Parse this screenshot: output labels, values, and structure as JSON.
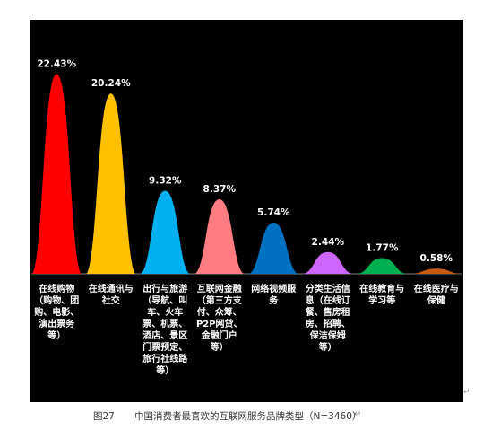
{
  "chart_data": {
    "type": "bar",
    "categories": [
      [
        "在线购物",
        "（购物、团",
        "购、电影、",
        "演出票务",
        "等）"
      ],
      [
        "在线通讯与",
        "社交"
      ],
      [
        "出行与旅游",
        "（导航、叫",
        "车、火车",
        "票、机票、",
        "酒店、景区",
        "门票预定、",
        "旅行社线路",
        "等）"
      ],
      [
        "互联网金融",
        "（第三方支",
        "付、众筹、",
        "P2P网贷、",
        "金融门户",
        "等）"
      ],
      [
        "网络视频服",
        "务"
      ],
      [
        "分类生活信",
        "息（在线订",
        "餐、售房租",
        "房、招聘、",
        "保洁保姆",
        "等）"
      ],
      [
        "在线教育与",
        "学习等"
      ],
      [
        "在线医疗与",
        "保健"
      ]
    ],
    "values": [
      22.43,
      20.24,
      9.32,
      8.37,
      5.74,
      2.44,
      1.77,
      0.58
    ],
    "value_labels": [
      "22.43%",
      "20.24%",
      "9.32%",
      "8.37%",
      "5.74%",
      "2.44%",
      "1.77%",
      "0.58%"
    ],
    "colors": [
      "#ff0000",
      "#ffc000",
      "#00b0f0",
      "#ff7c80",
      "#0070c0",
      "#cc66ff",
      "#00b050",
      "#c55a11"
    ],
    "ylim": [
      0,
      25
    ],
    "grid": false,
    "background": "#000000",
    "label_color": "#ffffff"
  },
  "caption": {
    "number": "图27",
    "text": "中国消费者最喜欢的互联网服务品牌类型（N=3460）"
  },
  "marks": {
    "return_mark": "↵"
  }
}
